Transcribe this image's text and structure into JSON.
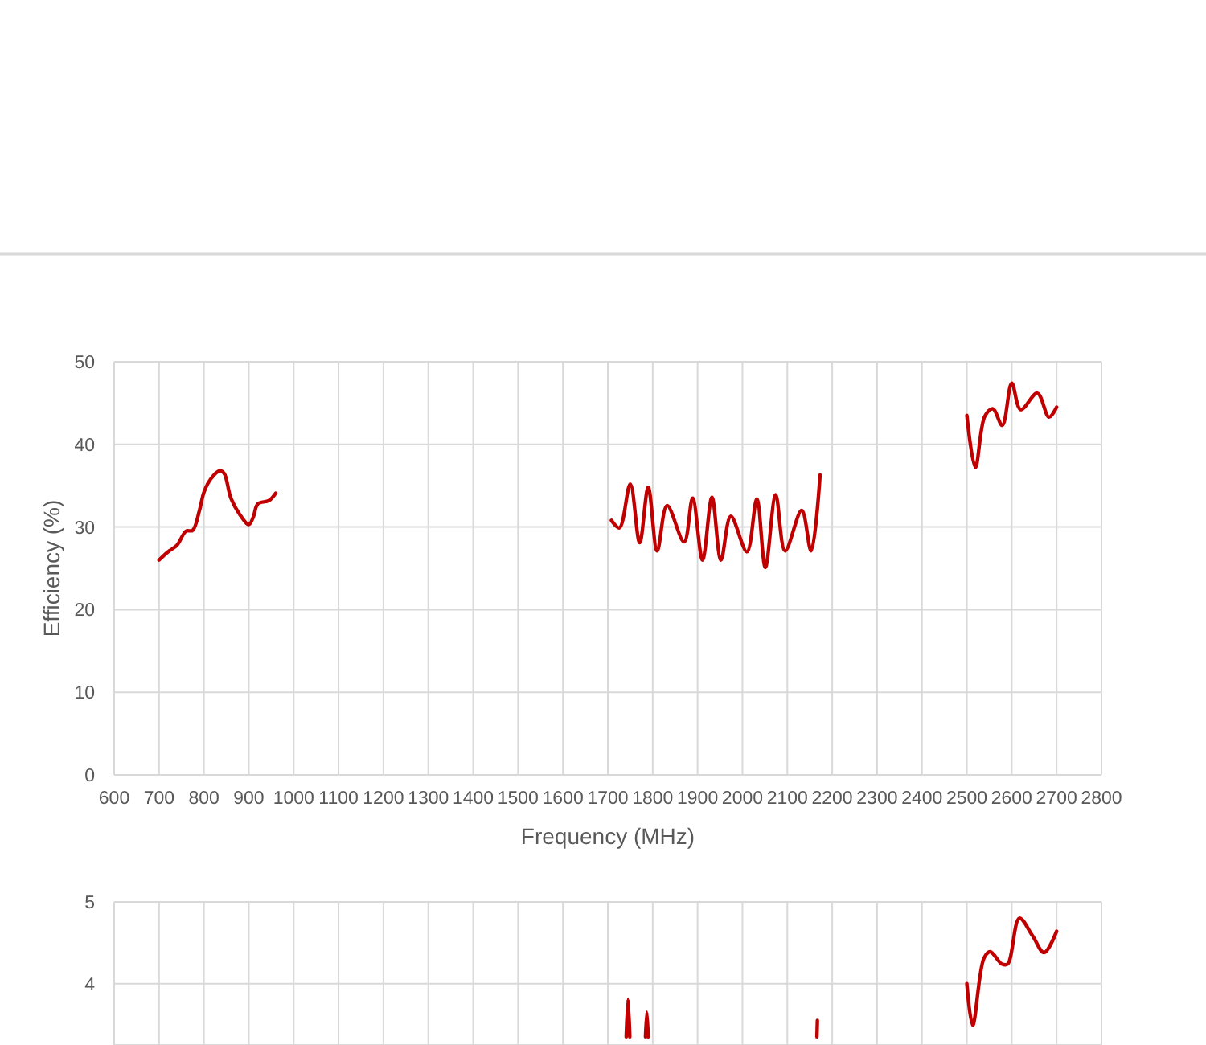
{
  "chart_data": [
    {
      "type": "line",
      "xlabel": "Frequency (MHz)",
      "ylabel": "Efficiency (%)",
      "xlim": [
        600,
        2800
      ],
      "xticks": [
        600,
        700,
        800,
        900,
        1000,
        1100,
        1200,
        1300,
        1400,
        1500,
        1600,
        1700,
        1800,
        1900,
        2000,
        2100,
        2200,
        2300,
        2400,
        2500,
        2600,
        2700,
        2800
      ],
      "ylim": [
        0,
        50
      ],
      "yticks": [
        0,
        10,
        20,
        30,
        40,
        50
      ],
      "grid": true,
      "series": [
        {
          "color": "#c00000",
          "x": [
            700,
            720,
            740,
            760,
            775,
            790,
            800,
            815,
            835,
            845,
            860,
            880,
            900,
            910,
            920,
            945,
            960,
            null,
            1708,
            1726,
            1750,
            1771,
            1790,
            1810,
            1832,
            1870,
            1889,
            1911,
            1932,
            1952,
            1974,
            2010,
            2032,
            2051,
            2074,
            2095,
            2132,
            2153,
            2173,
            null,
            2500,
            2519,
            2540,
            2558,
            2579,
            2600,
            2620,
            2657,
            2683,
            2700
          ],
          "values": [
            26,
            27,
            27.8,
            29.5,
            29.6,
            32,
            34.2,
            35.8,
            36.8,
            36.5,
            33.5,
            31.5,
            30.3,
            31.2,
            32.8,
            33.2,
            34.1,
            null,
            30.8,
            29.9,
            35.2,
            28.1,
            34.8,
            27.1,
            32.6,
            28.2,
            33.5,
            26,
            33.6,
            26,
            31.3,
            27,
            33.4,
            25.1,
            33.9,
            27.1,
            32,
            27.1,
            36.3,
            null,
            43.5,
            37.2,
            43.4,
            44.3,
            42.3,
            47.4,
            44.2,
            46.2,
            43.3,
            44.5
          ]
        }
      ]
    },
    {
      "type": "line",
      "xlim": [
        600,
        2800
      ],
      "xticks": [
        600,
        700,
        800,
        900,
        1000,
        1100,
        1200,
        1300,
        1400,
        1500,
        1600,
        1700,
        1800,
        1900,
        2000,
        2100,
        2200,
        2300,
        2400,
        2500,
        2600,
        2700,
        2800
      ],
      "ylim": [
        3.25,
        5
      ],
      "yticks": [
        4,
        5
      ],
      "grid": true,
      "tick_labels": "y",
      "series": [
        {
          "color": "#c00000",
          "x": [
            1741,
            1745,
            1749,
            null,
            1784,
            1787,
            1790,
            null,
            2166,
            2167,
            null,
            2500,
            2513,
            2538,
            2552,
            2578,
            2591,
            2617,
            2646,
            2672,
            2700
          ],
          "values": [
            3.35,
            3.81,
            3.35,
            null,
            3.35,
            3.65,
            3.35,
            null,
            3.35,
            3.55,
            null,
            4,
            3.49,
            4.31,
            4.39,
            4.24,
            4.24,
            4.8,
            4.59,
            4.38,
            4.64
          ]
        }
      ]
    }
  ]
}
